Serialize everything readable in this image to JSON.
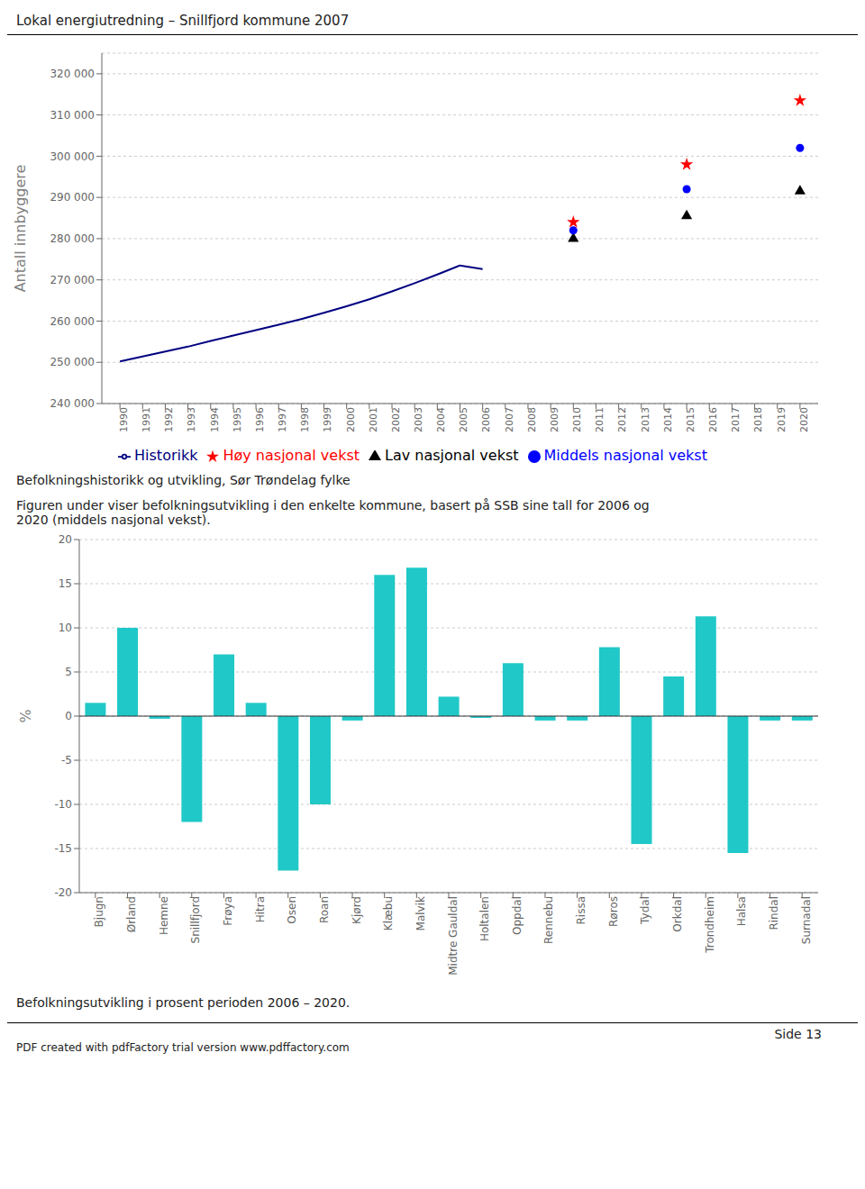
{
  "title": "Lokal  energiutredning – Snillfjord kommune 2007",
  "annotations": [
    "Side 13",
    "PDF created with pdfFactory trial version www.pdffactory.com"
  ],
  "chart_data": [
    {
      "type": "line",
      "subtitle": "Befolkningshistorikk og utvikling, Sør Trøndelag fylke",
      "ylabel": "Antall innbyggere",
      "x": [
        1990,
        1991,
        1992,
        1993,
        1994,
        1995,
        1996,
        1997,
        1998,
        1999,
        2000,
        2001,
        2002,
        2003,
        2004,
        2005,
        2006,
        2010,
        2015,
        2020
      ],
      "series": [
        {
          "name": "Historikk",
          "type": "line",
          "color": "navy",
          "values": [
            250200,
            251400,
            252600,
            253800,
            255200,
            256500,
            257800,
            259100,
            260500,
            262000,
            263600,
            265300,
            267200,
            269200,
            271300,
            273500,
            272600,
            null,
            null,
            null
          ]
        },
        {
          "name": "Lav nasjonal vekst",
          "type": "scatter",
          "marker": "triangle",
          "color": "black",
          "values": [
            null,
            null,
            null,
            null,
            null,
            null,
            null,
            null,
            null,
            null,
            null,
            null,
            null,
            null,
            null,
            null,
            null,
            280000,
            285500,
            291500
          ]
        },
        {
          "name": "Middels nasjonal vekst",
          "type": "scatter",
          "marker": "circle",
          "color": "blue",
          "values": [
            null,
            null,
            null,
            null,
            null,
            null,
            null,
            null,
            null,
            null,
            null,
            null,
            null,
            null,
            null,
            null,
            null,
            282000,
            292000,
            302000
          ]
        },
        {
          "name": "Høy nasjonal vekst",
          "type": "scatter",
          "marker": "star",
          "color": "red",
          "values": [
            null,
            null,
            null,
            null,
            null,
            null,
            null,
            null,
            null,
            null,
            null,
            null,
            null,
            null,
            null,
            null,
            null,
            284000,
            298000,
            313500
          ]
        }
      ],
      "xlim": [
        1989.2,
        2020.8
      ],
      "xticks": [
        1990,
        1991,
        1992,
        1993,
        1994,
        1995,
        1996,
        1997,
        1998,
        1999,
        2000,
        2001,
        2002,
        2003,
        2004,
        2005,
        2006,
        2007,
        2008,
        2009,
        2010,
        2011,
        2012,
        2013,
        2014,
        2015,
        2016,
        2017,
        2018,
        2019,
        2020
      ],
      "ylim": [
        240000,
        325000
      ],
      "yticks": [
        {
          "value": 240000,
          "label": "240 000"
        },
        {
          "value": 250000,
          "label": "250 000"
        },
        {
          "value": 260000,
          "label": "260 000"
        },
        {
          "value": 270000,
          "label": "270 000"
        },
        {
          "value": 280000,
          "label": "280 000"
        },
        {
          "value": 290000,
          "label": "290 000"
        },
        {
          "value": 300000,
          "label": "300 000"
        },
        {
          "value": 310000,
          "label": "310 000"
        },
        {
          "value": 320000,
          "label": "320 000"
        }
      ],
      "grid": true,
      "legend": "bottom"
    },
    {
      "type": "bar",
      "annotations": [
        "Figuren under viser befolkningsutvikling i den enkelte kommune, basert på SSB sine tall for 2006 og",
        "2020 (middels nasjonal vekst)."
      ],
      "subtitle": "Befolkningsutvikling i prosent perioden 2006 – 2020.",
      "ylabel": "%",
      "categories": [
        "Bjugn",
        "Ørland",
        "Hemne",
        "Snillfjord",
        "Frøya",
        "Hitra",
        "Osen",
        "Roan",
        "Kjørd",
        "Klæbu",
        "Malvik",
        "Midtre Gauldal",
        "Holtalen",
        "Oppdal",
        "Rennebu",
        "Rissa",
        "Røros",
        "Tydal",
        "Orkdal",
        "Trondheim",
        "Halsa",
        "Rindal",
        "Surnadal"
      ],
      "values": [
        1.5,
        10.0,
        -0.3,
        -12.0,
        7.0,
        1.5,
        -17.5,
        -10.0,
        -0.5,
        16.0,
        16.8,
        2.2,
        -0.2,
        6.0,
        -0.5,
        -0.5,
        7.8,
        -14.5,
        4.5,
        11.3,
        -15.5,
        -0.5,
        -0.5
      ],
      "color": "#20C8C8",
      "ylim": [
        -20,
        20
      ],
      "yticks": [
        -20,
        -15,
        -10,
        -5,
        0,
        5,
        10,
        15,
        20
      ],
      "grid": true
    }
  ]
}
